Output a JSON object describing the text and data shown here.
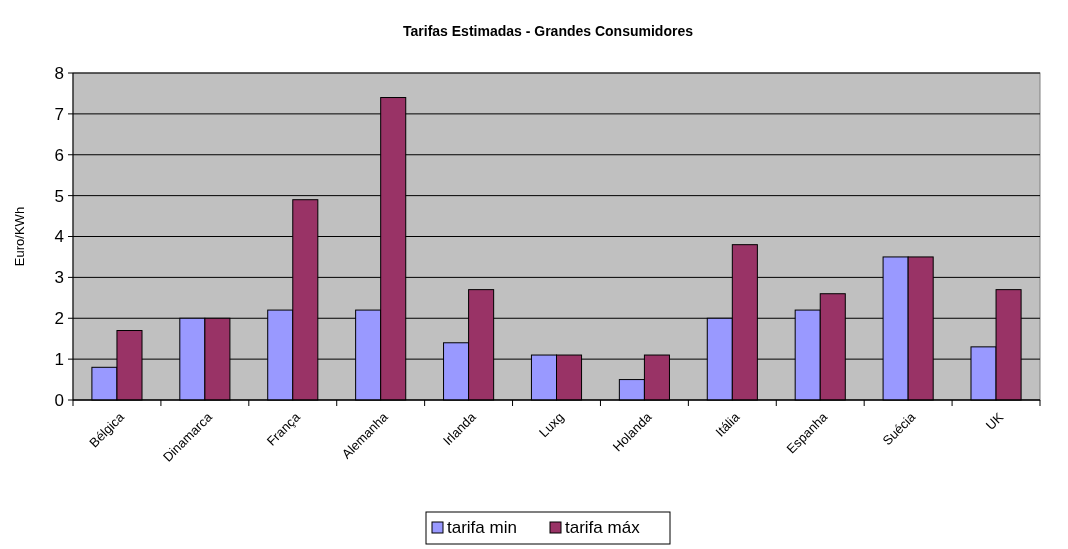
{
  "chart_data": {
    "type": "bar",
    "title": "Tarifas Estimadas - Grandes Consumidores",
    "ylabel": "Euro/KWh",
    "categories": [
      "Bélgica",
      "Dinamarca",
      "França",
      "Alemanha",
      "Irlanda",
      "Luxg",
      "Holanda",
      "Itália",
      "Espanha",
      "Suécia",
      "UK"
    ],
    "series": [
      {
        "name": "tarifa min",
        "color": "#9999ff",
        "values": [
          0.8,
          2,
          2.2,
          2.2,
          1.4,
          1.1,
          0.5,
          2.0,
          2.2,
          3.5,
          1.3
        ]
      },
      {
        "name": "tarifa máx",
        "color": "#993366",
        "values": [
          1.7,
          2,
          4.9,
          7.4,
          2.7,
          1.1,
          1.1,
          3.8,
          2.6,
          3.5,
          2.7
        ]
      }
    ],
    "ylim": [
      0,
      8
    ],
    "yticks": [
      0,
      1,
      2,
      3,
      4,
      5,
      6,
      7,
      8
    ],
    "grid": "y",
    "legend": "bottom"
  }
}
